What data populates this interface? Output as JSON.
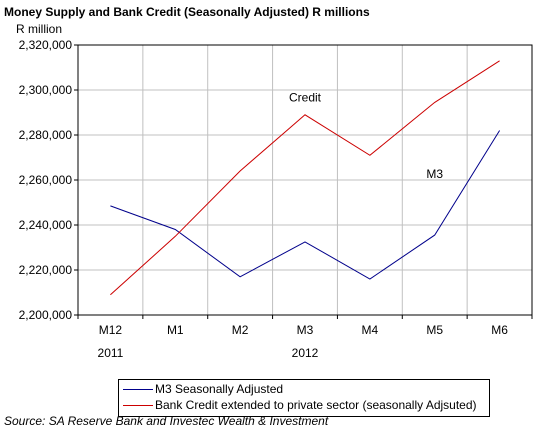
{
  "chart_data": {
    "type": "line",
    "title": "Money Supply and Bank Credit (Seasonally Adjusted) R millions",
    "ylabel": "R million",
    "xlabel": "",
    "categories": [
      "M12",
      "M1",
      "M2",
      "M3",
      "M4",
      "M5",
      "M6"
    ],
    "year_labels": [
      {
        "category": "M12",
        "label": "2011"
      },
      {
        "category": "M3",
        "label": "2012"
      }
    ],
    "ylim": [
      2200000,
      2320000
    ],
    "yticks": [
      2200000,
      2220000,
      2240000,
      2260000,
      2280000,
      2300000,
      2320000
    ],
    "ytick_labels": [
      "2,200,000",
      "2,220,000",
      "2,240,000",
      "2,260,000",
      "2,280,000",
      "2,300,000",
      "2,320,000"
    ],
    "grid": true,
    "legend_position": "bottom",
    "series": [
      {
        "name": "M3 Seasonally Adjusted",
        "color": "#00008b",
        "values": [
          2248500,
          2238000,
          2217000,
          2232500,
          2216000,
          2235500,
          2282000
        ]
      },
      {
        "name": "Bank Credit extended to private sector (seasonally Adjsuted)",
        "color": "#cc0000",
        "values": [
          2209000,
          2235000,
          2264000,
          2289000,
          2271000,
          2294500,
          2313000
        ]
      }
    ],
    "annotations": [
      {
        "text": "Credit",
        "category": "M3",
        "value": 2295000
      },
      {
        "text": "M3",
        "category": "M5",
        "value": 2261000
      }
    ],
    "source": "Source: SA Reserve Bank and Investec Wealth & Investment"
  }
}
